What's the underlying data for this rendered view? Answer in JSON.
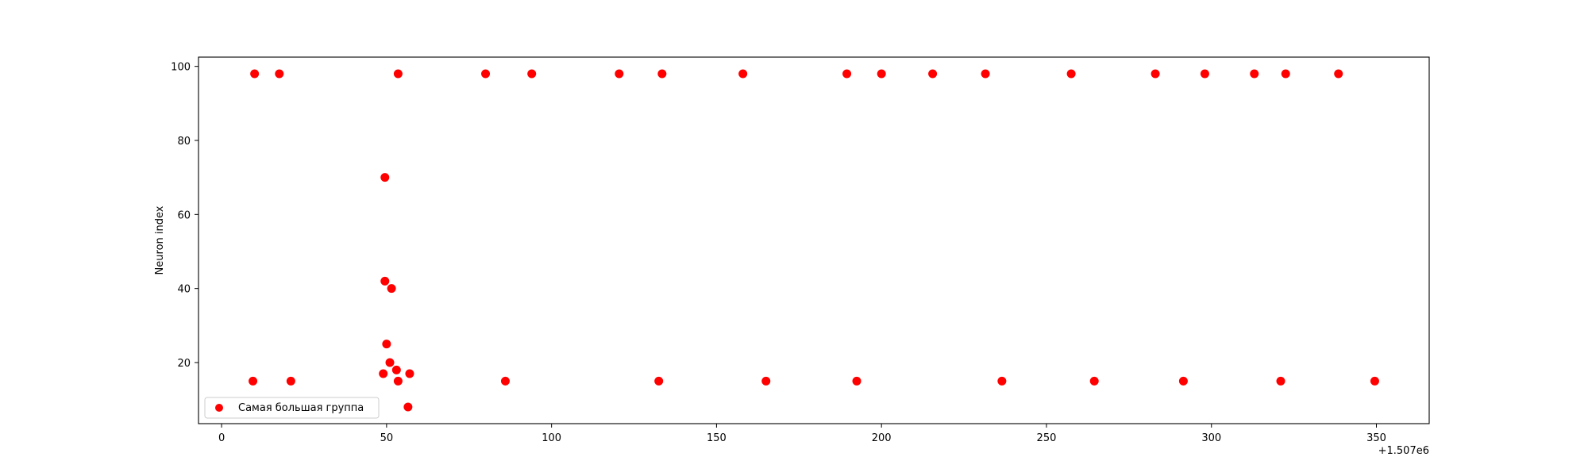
{
  "chart_data": {
    "type": "scatter",
    "title": "",
    "xlabel": "",
    "ylabel": "Neuron index",
    "x_offset_label": "+1.507e6",
    "xlim": [
      -7,
      366
    ],
    "ylim": [
      3.5,
      102.5
    ],
    "xticks": [
      0,
      50,
      100,
      150,
      200,
      250,
      300,
      350
    ],
    "xtick_labels": [
      "0",
      "50",
      "100",
      "150",
      "200",
      "250",
      "300",
      "350"
    ],
    "yticks": [
      20,
      40,
      60,
      80,
      100
    ],
    "ytick_labels": [
      "20",
      "40",
      "60",
      "80",
      "100"
    ],
    "grid": false,
    "legend_position": "lower-left",
    "series": [
      {
        "name": "Самая большая группа",
        "color": "#ff0000",
        "points": [
          {
            "x": 10,
            "y": 98
          },
          {
            "x": 17.5,
            "y": 98
          },
          {
            "x": 53.5,
            "y": 98
          },
          {
            "x": 80,
            "y": 98
          },
          {
            "x": 94,
            "y": 98
          },
          {
            "x": 120.5,
            "y": 98
          },
          {
            "x": 133.5,
            "y": 98
          },
          {
            "x": 158,
            "y": 98
          },
          {
            "x": 189.5,
            "y": 98
          },
          {
            "x": 200,
            "y": 98
          },
          {
            "x": 215.5,
            "y": 98
          },
          {
            "x": 231.5,
            "y": 98
          },
          {
            "x": 257.5,
            "y": 98
          },
          {
            "x": 283,
            "y": 98
          },
          {
            "x": 298,
            "y": 98
          },
          {
            "x": 313,
            "y": 98
          },
          {
            "x": 322.5,
            "y": 98
          },
          {
            "x": 338.5,
            "y": 98
          },
          {
            "x": 49.5,
            "y": 70
          },
          {
            "x": 49.5,
            "y": 42
          },
          {
            "x": 51.5,
            "y": 40
          },
          {
            "x": 50,
            "y": 25
          },
          {
            "x": 51,
            "y": 20
          },
          {
            "x": 49,
            "y": 17
          },
          {
            "x": 53,
            "y": 18
          },
          {
            "x": 53.5,
            "y": 15
          },
          {
            "x": 57,
            "y": 17
          },
          {
            "x": 56.5,
            "y": 8
          },
          {
            "x": 9.5,
            "y": 15
          },
          {
            "x": 21,
            "y": 15
          },
          {
            "x": 86,
            "y": 15
          },
          {
            "x": 132.5,
            "y": 15
          },
          {
            "x": 165,
            "y": 15
          },
          {
            "x": 192.5,
            "y": 15
          },
          {
            "x": 236.5,
            "y": 15
          },
          {
            "x": 264.5,
            "y": 15
          },
          {
            "x": 291.5,
            "y": 15
          },
          {
            "x": 321,
            "y": 15
          },
          {
            "x": 349.5,
            "y": 15
          }
        ]
      }
    ]
  }
}
